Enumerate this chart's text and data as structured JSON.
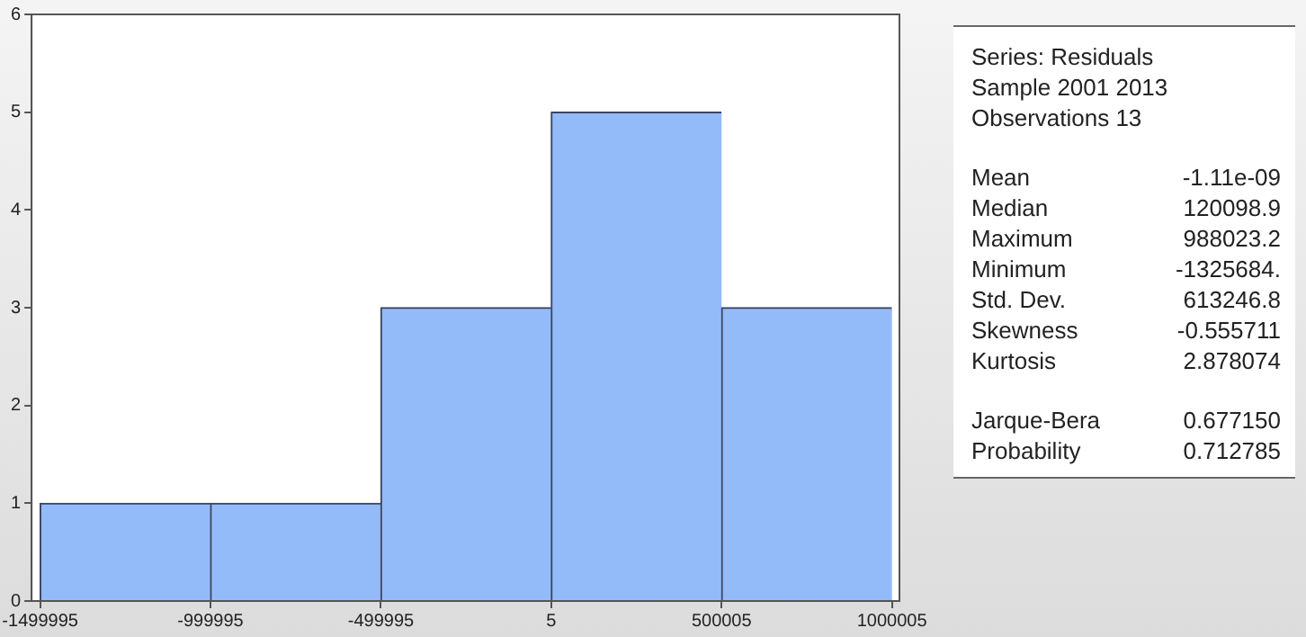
{
  "chart_data": {
    "type": "histogram",
    "bins": [
      -1499995,
      -999995,
      -499995,
      5,
      500005,
      1000005
    ],
    "values": [
      1,
      1,
      3,
      5,
      3
    ],
    "color": "#94bbf9",
    "xlim": [
      -1525000,
      1022000
    ],
    "xticks": [
      -1499995,
      -999995,
      -499995,
      5,
      500005,
      1000005
    ],
    "ylim": [
      0,
      6
    ],
    "yticks": [
      0,
      1,
      2,
      3,
      4,
      5,
      6
    ],
    "grid": false,
    "legend": false,
    "annotations": [
      "Series: Residuals",
      "Sample 2001 2013",
      "Observations 13",
      "Mean",
      "-1.11e-09",
      "Median",
      "120098.9",
      "Maximum",
      "988023.2",
      "Minimum",
      "-1325684.",
      "Std. Dev.",
      "613246.8",
      "Skewness",
      "-0.555711",
      "Kurtosis",
      "2.878074",
      "Jarque-Bera",
      "0.677150",
      "Probability",
      "0.712785"
    ]
  }
}
